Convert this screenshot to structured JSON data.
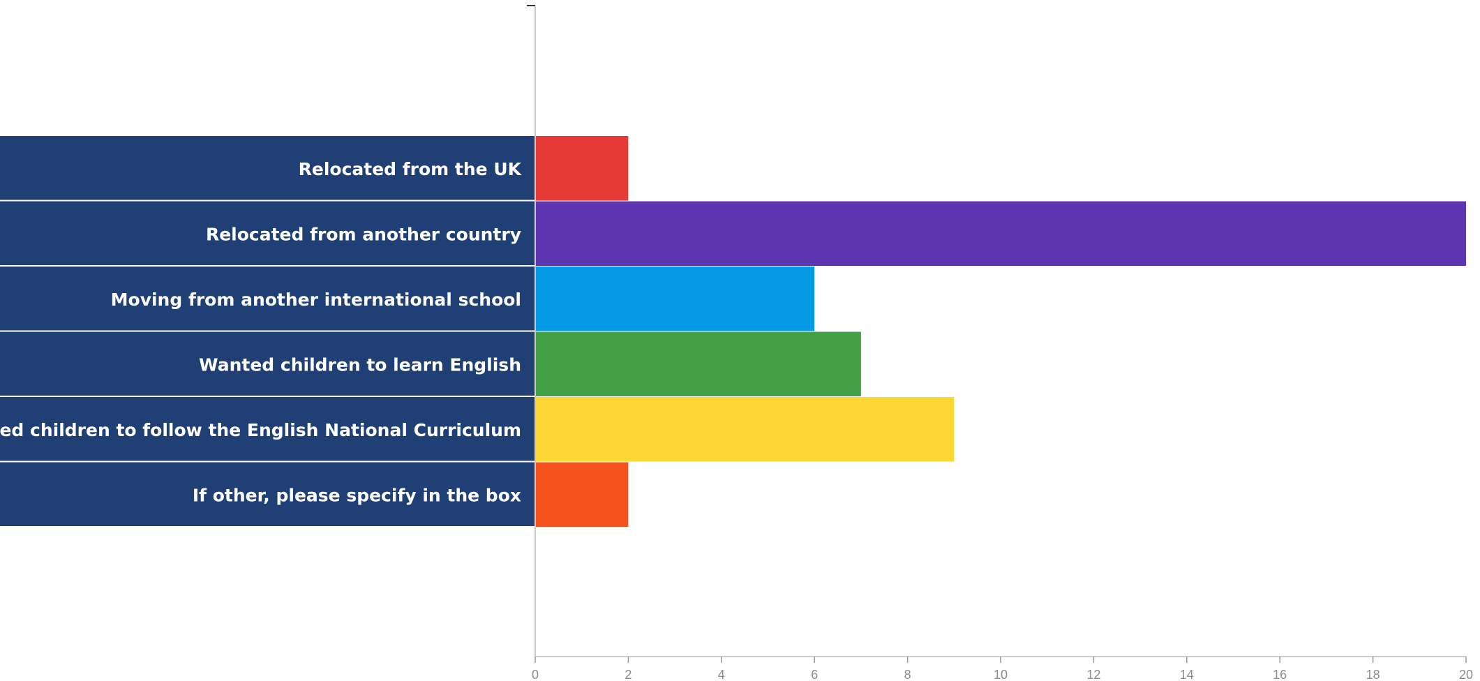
{
  "chart_data": {
    "type": "bar",
    "orientation": "horizontal",
    "categories": [
      "Relocated from the UK",
      "Relocated from another country",
      "Moving from another international school",
      "Wanted children to learn English",
      "Wanted children to follow the English National Curriculum",
      "If other, please specify in the box"
    ],
    "values": [
      2,
      20,
      6,
      7,
      9,
      2
    ],
    "bar_colors": [
      "#e53a36",
      "#5e35b1",
      "#039be5",
      "#43a047",
      "#fdd835",
      "#f4511e"
    ],
    "label_background": "#1f3f75",
    "xlim": [
      0,
      20
    ],
    "xticks": [
      "0",
      "2",
      "4",
      "6",
      "8",
      "10",
      "12",
      "14",
      "16",
      "18",
      "20"
    ],
    "grid": false,
    "legend": "none"
  }
}
